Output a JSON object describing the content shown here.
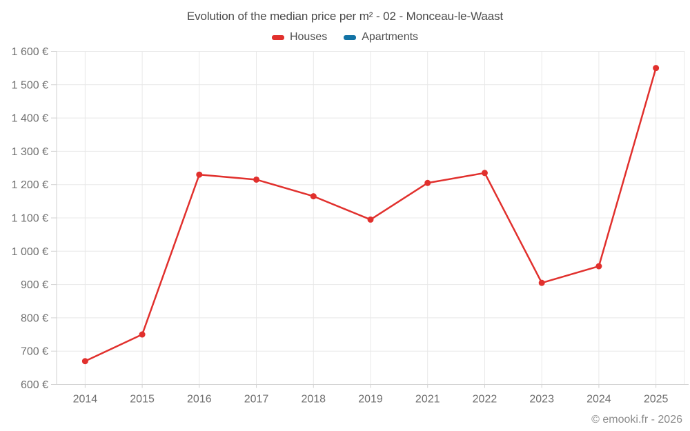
{
  "footer": {
    "credit": "© emooki.fr - 2026"
  },
  "colors": {
    "background": "#ffffff",
    "grid": "#e8e8e8",
    "axis": "#d2d2d2",
    "axis_text": "#6f6f6f",
    "title_text": "#4a4a4a",
    "legend_text": "#4f4f4f",
    "footer_text": "#8b8b8b"
  },
  "chart_data": {
    "type": "line",
    "title": "Evolution of the median price per m² - 02 - Monceau-le-Waast",
    "categories": [
      "2014",
      "2015",
      "2016",
      "2017",
      "2018",
      "2019",
      "2021",
      "2022",
      "2023",
      "2024",
      "2025"
    ],
    "series": [
      {
        "name": "Houses",
        "color": "#e1302d",
        "marker": "circle",
        "values": [
          670,
          750,
          1230,
          1215,
          1165,
          1095,
          1205,
          1235,
          905,
          955,
          1550
        ]
      },
      {
        "name": "Apartments",
        "color": "#1273a5",
        "marker": "circle",
        "values": []
      }
    ],
    "xlabel": "",
    "ylabel": "",
    "ylim": [
      600,
      1600
    ],
    "ytick_values": [
      600,
      700,
      800,
      900,
      1000,
      1100,
      1200,
      1300,
      1400,
      1500,
      1600
    ],
    "ytick_labels": [
      "600 €",
      "700 €",
      "800 €",
      "900 €",
      "1 000 €",
      "1 100 €",
      "1 200 €",
      "1 300 €",
      "1 400 €",
      "1 500 €",
      "1 600 €"
    ],
    "grid": true,
    "legend_position": "top"
  }
}
